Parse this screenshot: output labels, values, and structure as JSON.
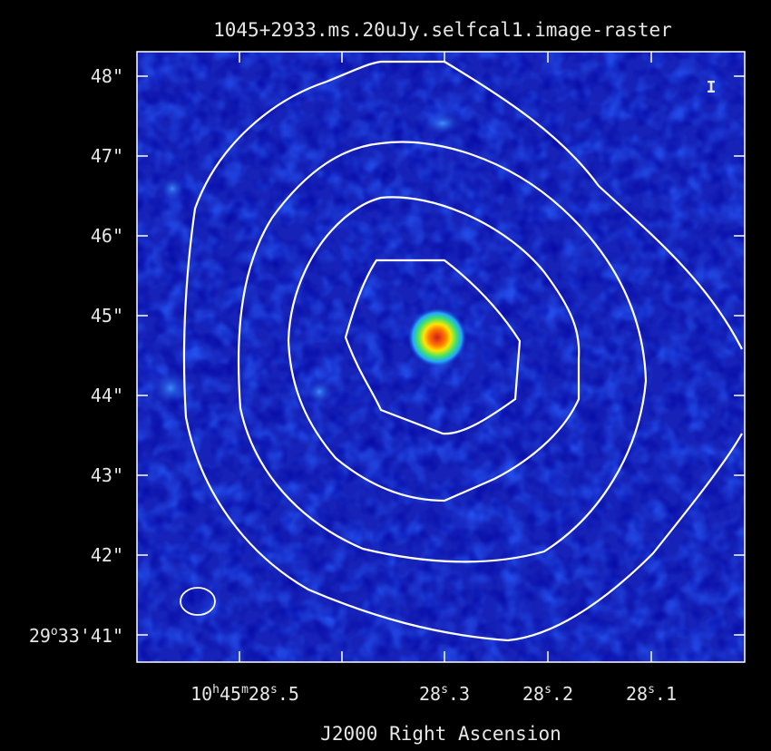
{
  "title": "1045+2933.ms.20uJy.selfcal1.image-raster",
  "stokes_label": "I",
  "x_axis_title": "J2000 Right Ascension",
  "y_ticks": [
    "48\"",
    "47\"",
    "46\"",
    "45\"",
    "44\"",
    "43\"",
    "42\""
  ],
  "y_origin_label": {
    "deg": "29",
    "deg_sup": "o",
    "rest": "33'41\""
  },
  "x_ticks": [
    {
      "h": "10",
      "h_sup": "h",
      "m": "45",
      "m_sup": "m",
      "s": "28",
      "s_sup": "s",
      "frac": ".5"
    },
    {
      "s": "28",
      "s_sup": "s",
      "frac": ".3"
    },
    {
      "s": "28",
      "s_sup": "s",
      "frac": ".2"
    },
    {
      "s": "28",
      "s_sup": "s",
      "frac": ".1"
    }
  ],
  "colors": {
    "background": "#000000",
    "raster_base": "#1520b8",
    "contour": "#ffffff",
    "frame": "#ffffff",
    "source_peak": "#d41a1a"
  }
}
